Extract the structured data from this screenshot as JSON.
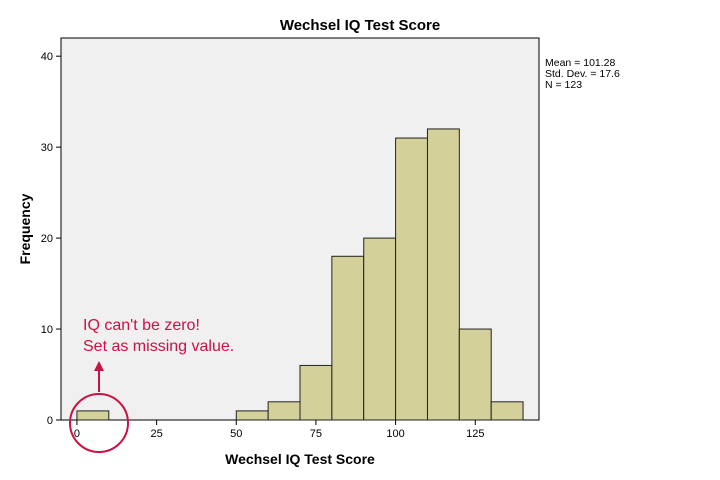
{
  "chart_data": {
    "type": "bar",
    "subtype": "histogram",
    "title": "Wechsel IQ Test Score",
    "xlabel": "Wechsel IQ Test Score",
    "ylabel": "Frequency",
    "xlim": [
      -5,
      145
    ],
    "ylim": [
      0,
      42
    ],
    "x_ticks": [
      0,
      25,
      50,
      75,
      100,
      125
    ],
    "y_ticks": [
      0,
      10,
      20,
      30,
      40
    ],
    "bin_width": 10,
    "bins": [
      {
        "start": 0,
        "end": 10,
        "count": 1
      },
      {
        "start": 10,
        "end": 20,
        "count": 0
      },
      {
        "start": 20,
        "end": 30,
        "count": 0
      },
      {
        "start": 30,
        "end": 40,
        "count": 0
      },
      {
        "start": 40,
        "end": 50,
        "count": 0
      },
      {
        "start": 50,
        "end": 60,
        "count": 1
      },
      {
        "start": 60,
        "end": 70,
        "count": 2
      },
      {
        "start": 70,
        "end": 80,
        "count": 6
      },
      {
        "start": 80,
        "end": 90,
        "count": 18
      },
      {
        "start": 90,
        "end": 100,
        "count": 20
      },
      {
        "start": 100,
        "end": 110,
        "count": 31
      },
      {
        "start": 110,
        "end": 120,
        "count": 32
      },
      {
        "start": 120,
        "end": 130,
        "count": 10
      },
      {
        "start": 130,
        "end": 140,
        "count": 2
      }
    ],
    "statistics": [
      "Mean = 101.28",
      "Std. Dev. = 17.6",
      "N = 123"
    ],
    "annotation": {
      "lines": [
        "IQ can't be zero!",
        "Set as missing value."
      ],
      "color": "#cc1144"
    },
    "colors": {
      "bar_fill": "#d4d09a",
      "bar_stroke": "#222222",
      "plot_background": "#f0f0f0"
    },
    "grid": false,
    "legend": "none"
  }
}
